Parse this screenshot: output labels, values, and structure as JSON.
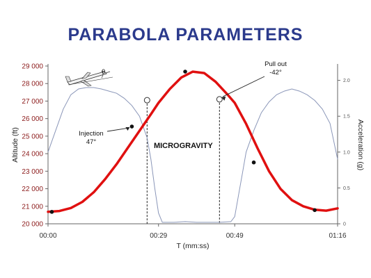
{
  "title": "PARABOLA PARAMETERS",
  "colors": {
    "title": "#2b3a8c",
    "altitude": "#e01010",
    "acceleration": "#8a96b8",
    "axis_text": "#8b1a1a"
  },
  "chart_data": {
    "type": "line",
    "title": "PARABOLA PARAMETERS",
    "xlabel": "T (mm:ss)",
    "ylabel": "Altitude (ft)",
    "y2label": "Acceleration (g)",
    "xlim": [
      0,
      76
    ],
    "ylim": [
      20000,
      29000
    ],
    "y2lim": [
      0,
      2.2
    ],
    "x_ticks": [
      0,
      29,
      49,
      76
    ],
    "x_tick_labels": [
      "00:00",
      "00:29",
      "00:49",
      "01:16"
    ],
    "y_ticks": [
      20000,
      21000,
      22000,
      23000,
      24000,
      25000,
      26000,
      27000,
      28000,
      29000
    ],
    "y_tick_labels": [
      "20 000",
      "21 000",
      "22 000",
      "23 000",
      "24 000",
      "25 000",
      "26 000",
      "27 000",
      "28 000",
      "29 000"
    ],
    "y2_ticks": [
      0,
      0.5,
      1.0,
      1.5,
      2.0
    ],
    "y2_tick_labels": [
      "0",
      "0.5",
      "1.0",
      "1.5",
      "2.0"
    ],
    "series": [
      {
        "axis": "left",
        "x": [
          0,
          3,
          6,
          9,
          12,
          15,
          18,
          21,
          24,
          27,
          29,
          32,
          35,
          38,
          41,
          44,
          47,
          49,
          52,
          55,
          58,
          61,
          64,
          67,
          70,
          73,
          76
        ],
        "y": [
          20680,
          20730,
          20900,
          21250,
          21800,
          22550,
          23400,
          24350,
          25300,
          26250,
          26900,
          27700,
          28350,
          28680,
          28600,
          28100,
          27400,
          26900,
          25700,
          24300,
          23000,
          22000,
          21350,
          21000,
          20800,
          20750,
          20880
        ]
      },
      {
        "axis": "right",
        "x": [
          0,
          2,
          4,
          6,
          8,
          10,
          12,
          14,
          16,
          18,
          20,
          22,
          24,
          26,
          27,
          28,
          29,
          30,
          33,
          36,
          39,
          42,
          45,
          48,
          49,
          50,
          51,
          52,
          54,
          56,
          58,
          60,
          62,
          64,
          66,
          68,
          70,
          72,
          74,
          76
        ],
        "y": [
          1.0,
          1.3,
          1.6,
          1.8,
          1.88,
          1.9,
          1.9,
          1.88,
          1.85,
          1.82,
          1.75,
          1.65,
          1.5,
          1.2,
          0.9,
          0.5,
          0.15,
          0.02,
          0.02,
          0.03,
          0.02,
          0.02,
          0.02,
          0.03,
          0.1,
          0.4,
          0.7,
          1.0,
          1.3,
          1.55,
          1.7,
          1.8,
          1.85,
          1.88,
          1.85,
          1.8,
          1.72,
          1.6,
          1.4,
          0.9
        ]
      }
    ],
    "markers": {
      "dots": [
        [
          1,
          20680
        ],
        [
          22,
          25550
        ],
        [
          36,
          28680
        ],
        [
          54,
          23500
        ],
        [
          70,
          20780
        ]
      ],
      "open_circles": [
        [
          26,
          27050
        ],
        [
          45,
          27100
        ]
      ]
    },
    "regions": [
      {
        "x": [
          26,
          45
        ],
        "label": "MICROGRAVITY"
      }
    ],
    "annotations": [
      {
        "lines": [
          "Injection",
          "47°"
        ],
        "points_to": [
          22,
          25550
        ]
      },
      {
        "lines": [
          "Pull out",
          "-42°"
        ],
        "points_to": [
          45,
          27100
        ]
      }
    ],
    "diagram_label": "θ",
    "grid": false
  }
}
